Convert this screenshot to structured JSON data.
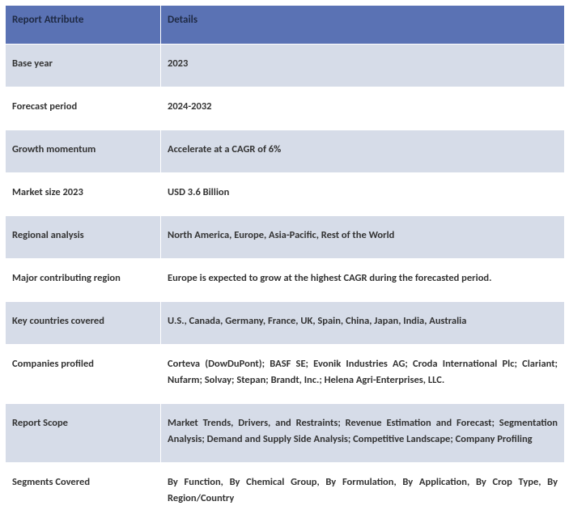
{
  "table": {
    "header_bg": "#5a72b4",
    "header_fg": "#1f2a44",
    "stripe_bg": "#d6dce8",
    "alt_bg": "#ffffff",
    "row_fg": "#333333",
    "columns": [
      "Report Attribute",
      "Details"
    ],
    "rows": [
      {
        "attr": "Base year",
        "detail": "2023",
        "justify": false
      },
      {
        "attr": "Forecast period",
        "detail": "2024-2032",
        "justify": false
      },
      {
        "attr": "Growth momentum",
        "detail": "Accelerate at a CAGR of 6%",
        "justify": false
      },
      {
        "attr": "Market size 2023",
        "detail": "USD 3.6 Billion",
        "justify": false
      },
      {
        "attr": "Regional analysis",
        "detail": "North America, Europe, Asia-Pacific, Rest of the World",
        "justify": false
      },
      {
        "attr": "Major contributing region",
        "detail": "Europe is expected to grow at the highest CAGR during the forecasted period.",
        "justify": false
      },
      {
        "attr": "Key countries covered",
        "detail": "U.S., Canada, Germany, France, UK, Spain, China, Japan, India, Australia",
        "justify": false
      },
      {
        "attr": "Companies profiled",
        "detail": "Corteva (DowDuPont); BASF SE; Evonik Industries AG; Croda International Plc; Clariant; Nufarm; Solvay; Stepan; Brandt, Inc.; Helena Agri-Enterprises, LLC.",
        "justify": true
      },
      {
        "attr": "Report Scope",
        "detail": "Market Trends, Drivers, and Restraints; Revenue Estimation and Forecast; Segmentation Analysis; Demand and Supply Side Analysis; Competitive Landscape; Company Profiling",
        "justify": true
      },
      {
        "attr": "Segments Covered",
        "detail": "By Function, By Chemical Group, By Formulation, By Application, By Crop Type, By Region/Country",
        "justify": true
      }
    ]
  }
}
